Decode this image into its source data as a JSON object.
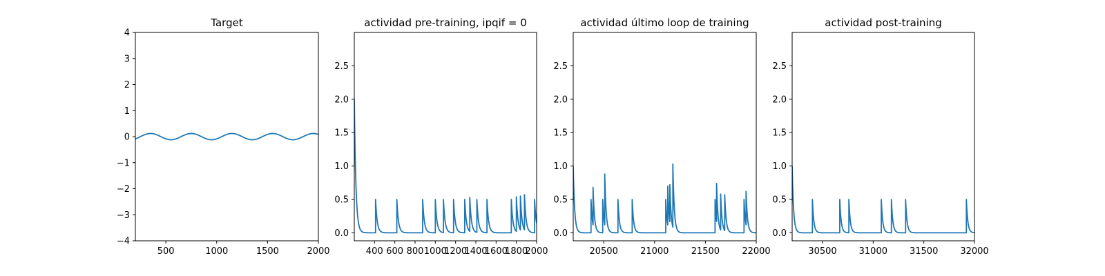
{
  "chart_data": [
    {
      "type": "line",
      "title": "Target",
      "xlim": [
        200,
        2000
      ],
      "ylim": [
        -4,
        4
      ],
      "xticks": [
        500,
        1000,
        1500,
        2000
      ],
      "yticks": [
        -4,
        -3,
        -2,
        -1,
        0,
        1,
        2,
        3,
        4
      ],
      "ytick_labels": [
        "−4",
        "−3",
        "−2",
        "−1",
        "0",
        "1",
        "2",
        "3",
        "4"
      ],
      "series": [
        {
          "kind": "sine",
          "amplitude": 0.12,
          "period": 400,
          "peaks_at": [
            350,
            750,
            1150,
            1550,
            1950
          ],
          "color": "#1f77b4"
        }
      ]
    },
    {
      "type": "line",
      "title": "actividad pre-training, ipqif = 0",
      "xlim": [
        200,
        2000
      ],
      "ylim": [
        -0.12,
        3.0
      ],
      "xticks": [
        400,
        600,
        800,
        1000,
        1200,
        1400,
        1600,
        1800,
        2000
      ],
      "yticks": [
        0.0,
        0.5,
        1.0,
        1.5,
        2.0,
        2.5
      ],
      "ytick_labels": [
        "0.0",
        "0.5",
        "1.0",
        "1.5",
        "2.0",
        "2.5"
      ],
      "series": [
        {
          "kind": "spike_train",
          "start_value": 2.0,
          "decay_time": 16,
          "spikes": [
            {
              "t": 410,
              "v": 0.5
            },
            {
              "t": 620,
              "v": 0.5
            },
            {
              "t": 875,
              "v": 0.5
            },
            {
              "t": 1000,
              "v": 0.5
            },
            {
              "t": 1080,
              "v": 0.5
            },
            {
              "t": 1180,
              "v": 0.5
            },
            {
              "t": 1290,
              "v": 0.5
            },
            {
              "t": 1340,
              "v": 0.53
            },
            {
              "t": 1410,
              "v": 0.5
            },
            {
              "t": 1510,
              "v": 0.5
            },
            {
              "t": 1750,
              "v": 0.5
            },
            {
              "t": 1800,
              "v": 0.54
            },
            {
              "t": 1840,
              "v": 0.55
            },
            {
              "t": 1880,
              "v": 0.57
            },
            {
              "t": 1980,
              "v": 0.5
            }
          ],
          "color": "#1f77b4"
        }
      ]
    },
    {
      "type": "line",
      "title": "actividad último loop de training",
      "xlim": [
        20200,
        22000
      ],
      "ylim": [
        -0.12,
        3.0
      ],
      "xticks": [
        20500,
        21000,
        21500,
        22000
      ],
      "yticks": [
        0.0,
        0.5,
        1.0,
        1.5,
        2.0,
        2.5
      ],
      "ytick_labels": [
        "0.0",
        "0.5",
        "1.0",
        "1.5",
        "2.0",
        "2.5"
      ],
      "series": [
        {
          "kind": "spike_train",
          "start_value": 1.0,
          "decay_time": 14,
          "spikes": [
            {
              "t": 20375,
              "v": 0.5
            },
            {
              "t": 20395,
              "v": 0.68
            },
            {
              "t": 20490,
              "v": 0.5
            },
            {
              "t": 20510,
              "v": 0.88
            },
            {
              "t": 20640,
              "v": 0.5
            },
            {
              "t": 20780,
              "v": 0.5
            },
            {
              "t": 21110,
              "v": 0.5
            },
            {
              "t": 21130,
              "v": 0.7
            },
            {
              "t": 21150,
              "v": 0.72
            },
            {
              "t": 21180,
              "v": 1.03
            },
            {
              "t": 21595,
              "v": 0.5
            },
            {
              "t": 21610,
              "v": 0.74
            },
            {
              "t": 21650,
              "v": 0.58
            },
            {
              "t": 21690,
              "v": 0.57
            },
            {
              "t": 21880,
              "v": 0.5
            },
            {
              "t": 21900,
              "v": 0.62
            }
          ],
          "color": "#1f77b4"
        }
      ]
    },
    {
      "type": "line",
      "title": "actividad post-training",
      "xlim": [
        30200,
        32000
      ],
      "ylim": [
        -0.12,
        3.0
      ],
      "xticks": [
        30500,
        31000,
        31500,
        32000
      ],
      "yticks": [
        0.0,
        0.5,
        1.0,
        1.5,
        2.0,
        2.5
      ],
      "ytick_labels": [
        "0.0",
        "0.5",
        "1.0",
        "1.5",
        "2.0",
        "2.5"
      ],
      "series": [
        {
          "kind": "spike_train",
          "start_value": 1.0,
          "decay_time": 14,
          "spikes": [
            {
              "t": 30400,
              "v": 0.5
            },
            {
              "t": 30670,
              "v": 0.5
            },
            {
              "t": 30760,
              "v": 0.5
            },
            {
              "t": 31080,
              "v": 0.5
            },
            {
              "t": 31180,
              "v": 0.5
            },
            {
              "t": 31320,
              "v": 0.5
            },
            {
              "t": 31920,
              "v": 0.5
            }
          ],
          "color": "#1f77b4"
        }
      ]
    }
  ]
}
